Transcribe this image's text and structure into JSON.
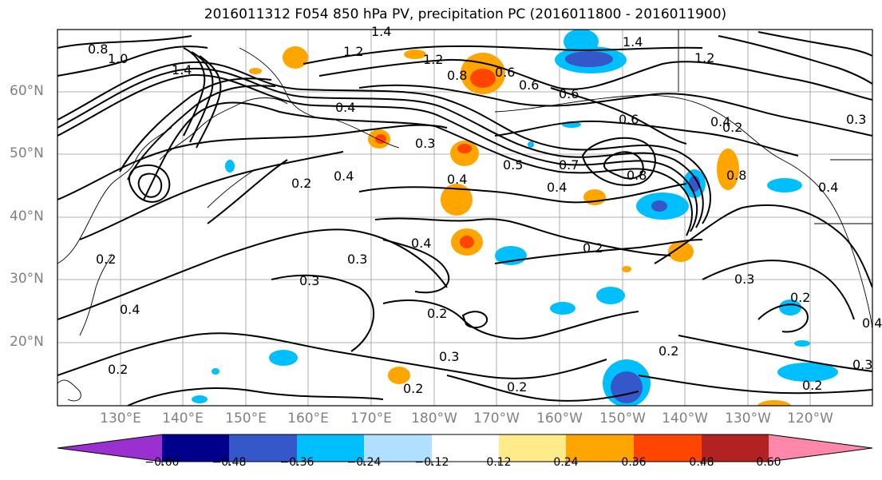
{
  "title": "2016011312 F054 850 hPa PV, precipitation PC (2016011800 - 2016011900)",
  "map": {
    "lat_labels": [
      "60°N",
      "50°N",
      "40°N",
      "30°N",
      "20°N"
    ],
    "lon_labels": [
      "130°E",
      "140°E",
      "150°E",
      "160°E",
      "170°E",
      "180°W",
      "170°W",
      "160°W",
      "150°W",
      "140°W",
      "130°W",
      "120°W"
    ],
    "contour_labels": [
      "0.8",
      "1.0",
      "1.4",
      "1.2",
      "1.4",
      "1.2",
      "0.8",
      "0.6",
      "0.6",
      "1.4",
      "1.2",
      "0.6",
      "0.8",
      "0.4",
      "0.3",
      "0.5",
      "0.7",
      "0.4",
      "0.8",
      "0.4",
      "0.2",
      "0.4",
      "0.3",
      "0.4",
      "0.2",
      "0.3",
      "0.4",
      "0.2",
      "0.3",
      "0.2",
      "0.3",
      "0.2",
      "0.2",
      "0.2",
      "0.2",
      "0.2",
      "0.2",
      "0.4",
      "0.3",
      "0.4",
      "0.2",
      "0.3",
      "0.4",
      "0.6"
    ]
  },
  "colorbar": {
    "ticks": [
      "−0.60",
      "−0.48",
      "−0.36",
      "−0.24",
      "−0.12",
      "0.12",
      "0.24",
      "0.36",
      "0.48",
      "0.60"
    ],
    "colors": [
      "#9b30d0",
      "#00008b",
      "#3457c9",
      "#00bfff",
      "#b0e0ff",
      "#ffffff",
      "#ffeb8a",
      "#ffa500",
      "#ff4500",
      "#b22222",
      "#ff88aa"
    ]
  }
}
